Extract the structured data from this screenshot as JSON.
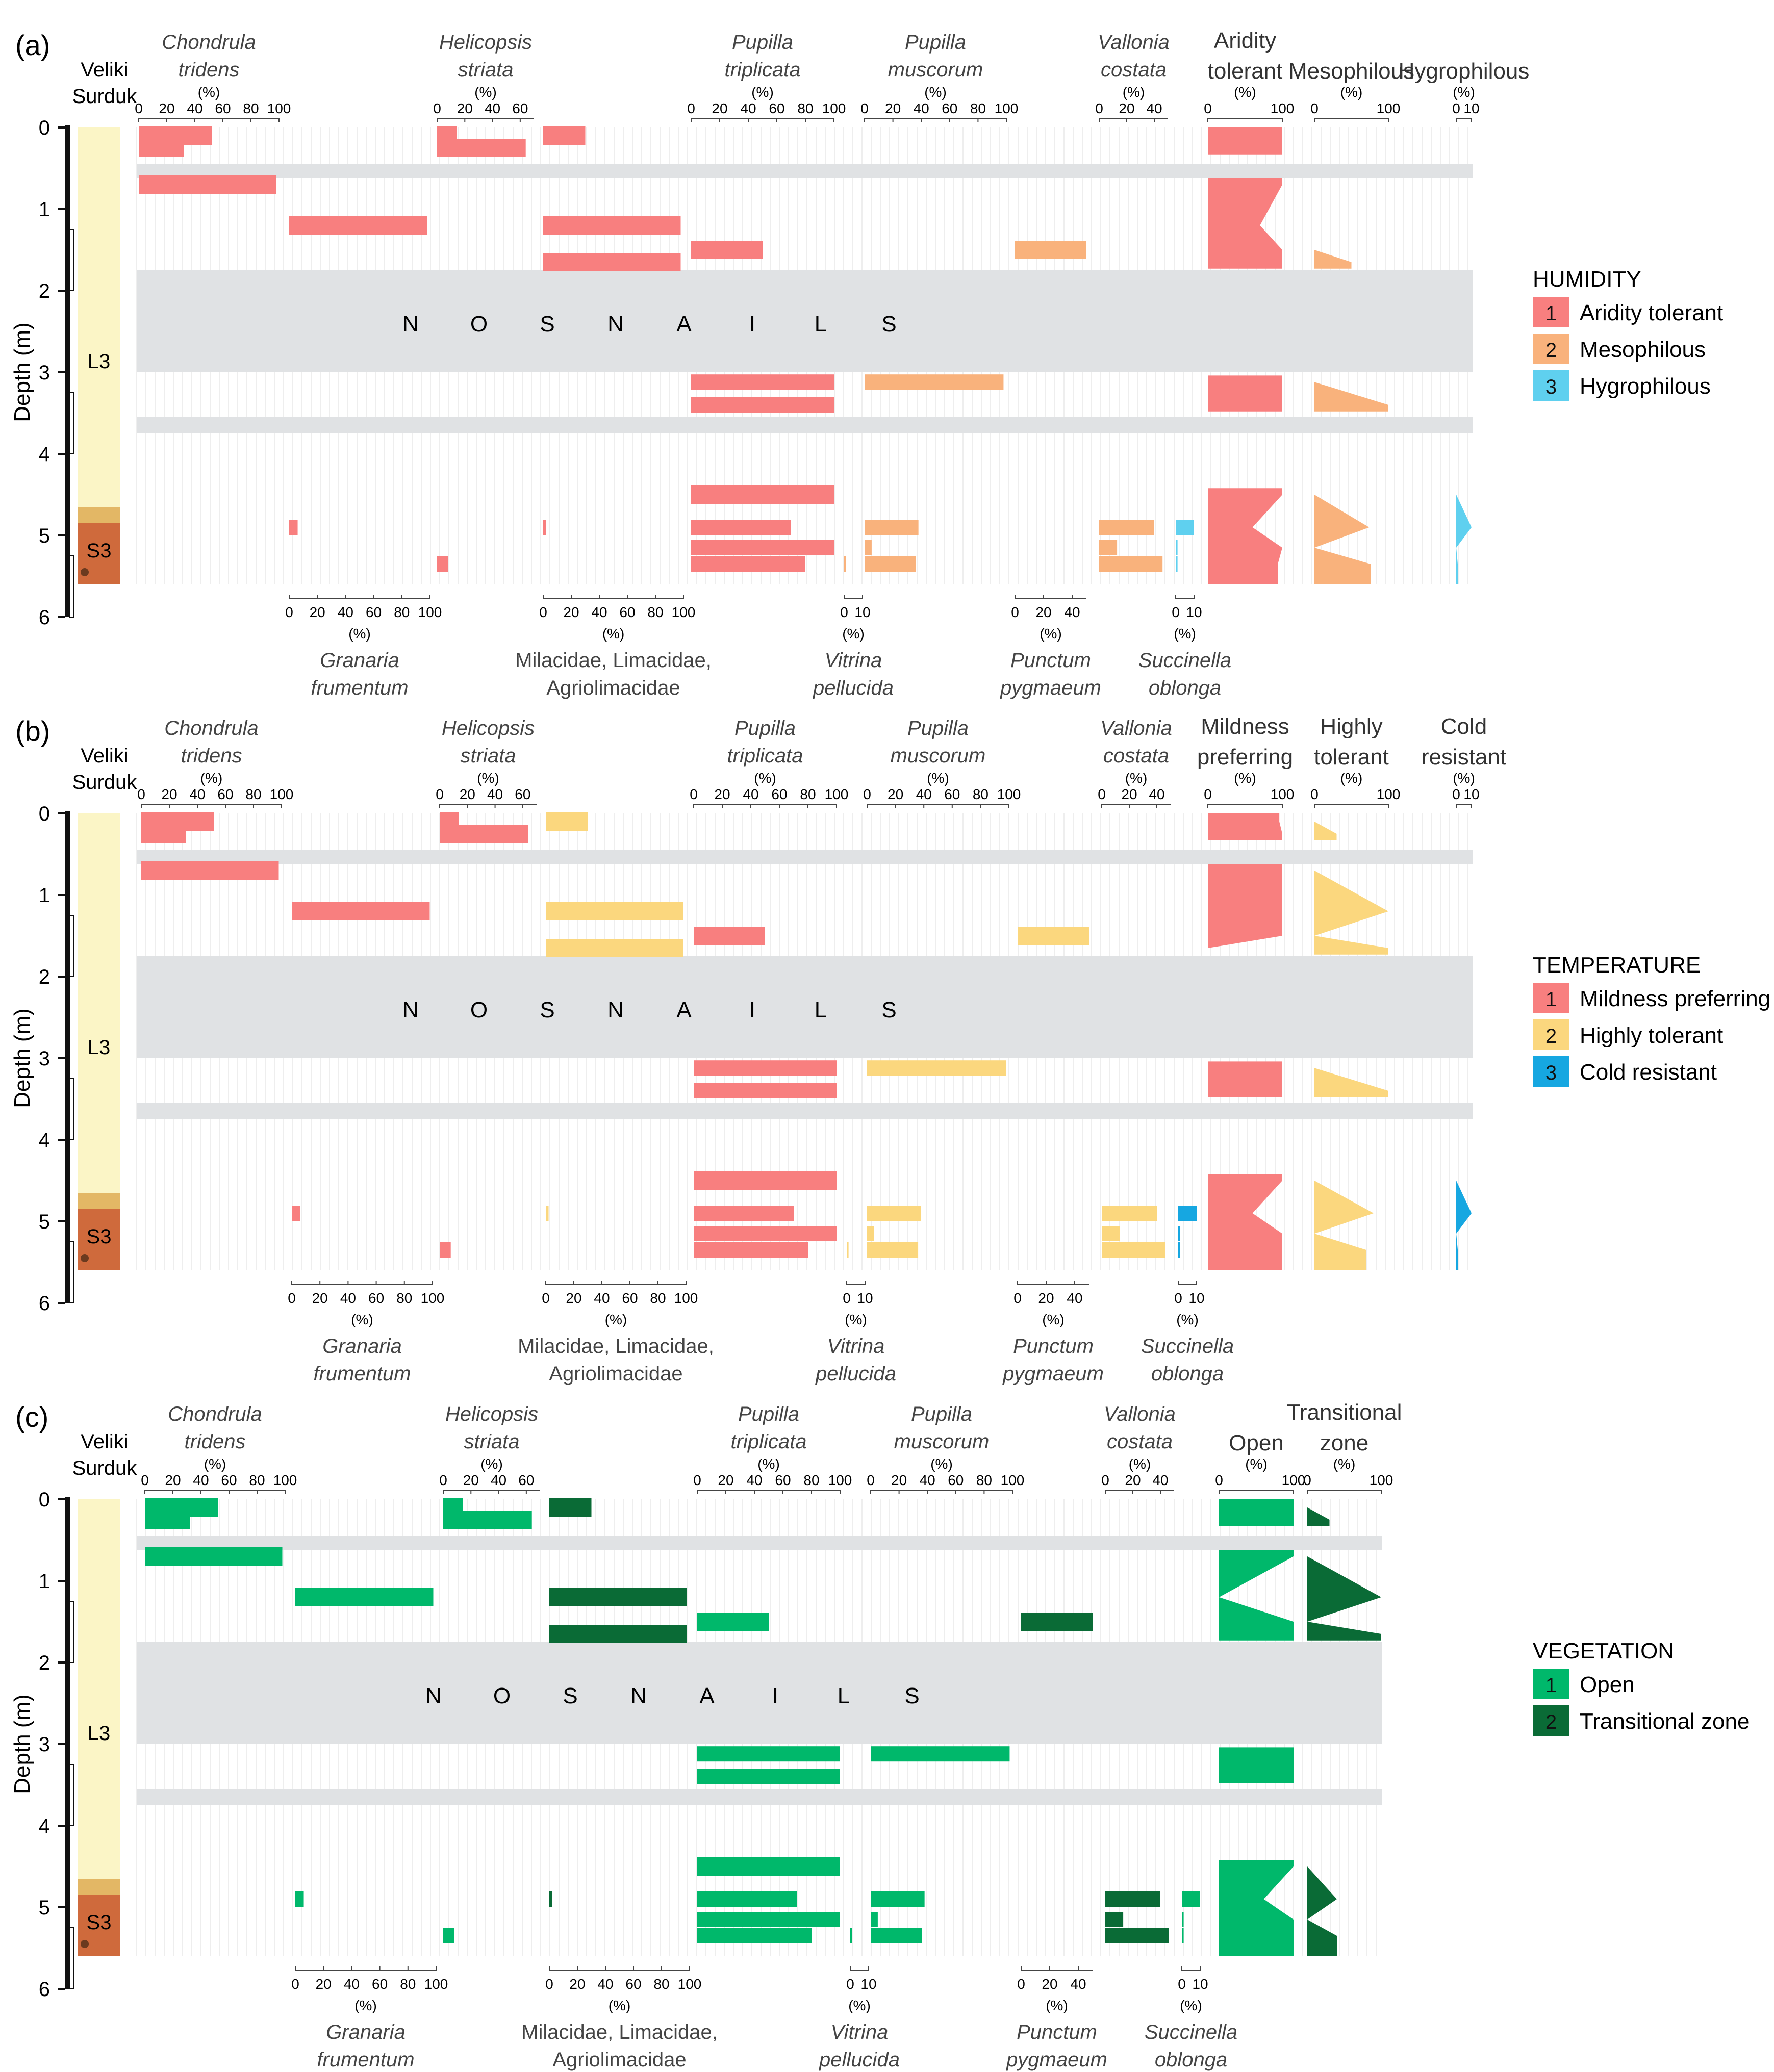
{
  "chart_data": {
    "type": "bar",
    "figure": "Malacological diagram, Veliki Surduk profile",
    "profile_label": "Veliki Surduk",
    "depth_axis": {
      "label": "Depth (m)",
      "ticks": [
        "0",
        "1",
        "2",
        "3",
        "4",
        "5",
        "6"
      ],
      "range_m": [
        0,
        6
      ]
    },
    "units": [
      {
        "name": "L3",
        "top_m": 0,
        "bottom_m": 4.85
      },
      {
        "name": "S3",
        "top_m": 4.85,
        "bottom_m": 5.6
      }
    ],
    "no_snails_label": [
      "N",
      "O",
      "S",
      "N",
      "A",
      "I",
      "L",
      "S"
    ],
    "no_snails_interval_m": [
      1.75,
      3.0
    ],
    "gap_intervals_m": [
      [
        0.45,
        0.62
      ],
      [
        3.55,
        3.75
      ]
    ],
    "sample_depths_m": [
      0.1,
      0.25,
      0.7,
      1.2,
      1.5,
      1.65,
      3.12,
      3.4,
      4.5,
      4.9,
      5.15,
      5.35
    ],
    "taxa": [
      {
        "key": "ctri",
        "name1": "Chondrula",
        "name2": "tridens",
        "pos": "top",
        "ticks": [
          "0",
          "20",
          "40",
          "60",
          "80",
          "100"
        ],
        "max": 100,
        "values": [
          52,
          32,
          98,
          0,
          0,
          0,
          0,
          0,
          0,
          0,
          0,
          0
        ],
        "habit": {
          "a": 1,
          "b": 1,
          "c": 1
        }
      },
      {
        "key": "gfru",
        "name1": "Granaria",
        "name2": "frumentum",
        "pos": "bottom",
        "ticks": [
          "0",
          "20",
          "40",
          "60",
          "80",
          "100"
        ],
        "max": 100,
        "values": [
          0,
          0,
          0,
          98,
          0,
          0,
          0,
          0,
          0,
          6,
          0,
          0
        ],
        "habit": {
          "a": 1,
          "b": 1,
          "c": 1
        }
      },
      {
        "key": "hstr",
        "name1": "Helicopsis",
        "name2": "striata",
        "pos": "top",
        "ticks": [
          "0",
          "20",
          "40",
          "60"
        ],
        "max": 70,
        "values": [
          14,
          64,
          0,
          0,
          0,
          0,
          0,
          0,
          0,
          0,
          0,
          8
        ],
        "habit": {
          "a": 1,
          "b": 1,
          "c": 1
        }
      },
      {
        "key": "mila",
        "name1": "Milacidae, Limacidae,",
        "name2": "Agriolimacidae",
        "pos": "bottom",
        "ticks": [
          "0",
          "20",
          "40",
          "60",
          "80",
          "100"
        ],
        "max": 100,
        "values": [
          30,
          0,
          0,
          98,
          0,
          98,
          0,
          0,
          0,
          2,
          0,
          0
        ],
        "habit": {
          "a": 1,
          "b": 2,
          "c": 2
        }
      },
      {
        "key": "ptri",
        "name1": "Pupilla",
        "name2": "triplicata",
        "pos": "top",
        "ticks": [
          "0",
          "20",
          "40",
          "60",
          "80",
          "100"
        ],
        "max": 100,
        "values": [
          0,
          0,
          0,
          0,
          50,
          0,
          100,
          100,
          100,
          70,
          100,
          80
        ],
        "habit": {
          "a": 1,
          "b": 1,
          "c": 1
        }
      },
      {
        "key": "vpel",
        "name1": "Vitrina",
        "name2": "pellucida",
        "pos": "bottom",
        "ticks": [
          "0",
          "10"
        ],
        "max": 10,
        "values": [
          0,
          0,
          0,
          0,
          0,
          0,
          0,
          0,
          0,
          0,
          0,
          1
        ],
        "habit": {
          "a": 2,
          "b": 2,
          "c": 1
        }
      },
      {
        "key": "pmus",
        "name1": "Pupilla",
        "name2": "muscorum",
        "pos": "top",
        "ticks": [
          "0",
          "20",
          "40",
          "60",
          "80",
          "100"
        ],
        "max": 100,
        "values": [
          0,
          0,
          0,
          0,
          0,
          0,
          98,
          0,
          0,
          38,
          5,
          36
        ],
        "habit": {
          "a": 2,
          "b": 2,
          "c": 1
        }
      },
      {
        "key": "ppyg",
        "name1": "Punctum",
        "name2": "pygmaeum",
        "pos": "bottom",
        "ticks": [
          "0",
          "20",
          "40"
        ],
        "max": 50,
        "values": [
          0,
          0,
          0,
          0,
          50,
          0,
          0,
          0,
          0,
          0,
          0,
          0
        ],
        "habit": {
          "a": 2,
          "b": 2,
          "c": 2
        }
      },
      {
        "key": "vcos",
        "name1": "Vallonia",
        "name2": "costata",
        "pos": "top",
        "ticks": [
          "0",
          "20",
          "40"
        ],
        "max": 50,
        "values": [
          0,
          0,
          0,
          0,
          0,
          0,
          0,
          0,
          0,
          40,
          13,
          46
        ],
        "habit": {
          "a": 2,
          "b": 2,
          "c": 2
        }
      },
      {
        "key": "sobl",
        "name1": "Succinella",
        "name2": "oblonga",
        "pos": "bottom",
        "ticks": [
          "0",
          "10"
        ],
        "max": 10,
        "values": [
          0,
          0,
          0,
          0,
          0,
          0,
          0,
          0,
          0,
          10,
          1,
          1
        ],
        "habit": {
          "a": 3,
          "b": 3,
          "c": 1
        }
      }
    ],
    "panels": [
      {
        "key": "a",
        "label": "(a)",
        "legend_title": "HUMIDITY",
        "colors": {
          "1": "#f87f7f",
          "2": "#f9b27c",
          "3": "#5fd0ef"
        },
        "categories": [
          {
            "num": "1",
            "name": "Aridity tolerant"
          },
          {
            "num": "2",
            "name": "Mesophilous"
          },
          {
            "num": "3",
            "name": "Hygrophilous"
          }
        ],
        "groups": [
          {
            "h1": "Aridity",
            "h2": "tolerant",
            "ticks": [
              "0",
              "100"
            ],
            "max": 100,
            "cat": "1",
            "values": [
              100,
              100,
              100,
              70,
              100,
              100,
              100,
              100,
              100,
              60,
              100,
              94
            ]
          },
          {
            "h1": "Mesophilous",
            "h2": "",
            "ticks": [
              "0",
              "100"
            ],
            "max": 100,
            "cat": "2",
            "values": [
              0,
              0,
              0,
              0,
              0,
              50,
              0,
              100,
              0,
              74,
              0,
              76
            ]
          },
          {
            "h1": "Hygrophilous",
            "h2": "",
            "ticks": [
              "0",
              "10"
            ],
            "max": 10,
            "cat": "3",
            "values": [
              0,
              0,
              0,
              0,
              0,
              0,
              0,
              0,
              0,
              10,
              0,
              1
            ]
          }
        ]
      },
      {
        "key": "b",
        "label": "(b)",
        "legend_title": "TEMPERATURE",
        "colors": {
          "1": "#f87f7f",
          "2": "#fbd77e",
          "3": "#16a7e1"
        },
        "categories": [
          {
            "num": "1",
            "name": "Mildness preferring"
          },
          {
            "num": "2",
            "name": "Highly tolerant"
          },
          {
            "num": "3",
            "name": "Cold resistant"
          }
        ],
        "groups": [
          {
            "h1": "Mildness",
            "h2": "preferring",
            "ticks": [
              "0",
              "100"
            ],
            "max": 100,
            "cat": "1",
            "values": [
              96,
              100,
              100,
              100,
              100,
              0,
              100,
              100,
              100,
              60,
              100,
              100
            ],
            "v0": [
              100,
              100,
              100,
              100,
              100,
              100,
              100,
              100,
              100,
              100,
              100,
              100
            ]
          },
          {
            "h1": "Highly",
            "h2": "tolerant",
            "ticks": [
              "0",
              "100"
            ],
            "max": 100,
            "cat": "2",
            "values": [
              0,
              30,
              0,
              100,
              0,
              100,
              0,
              100,
              0,
              80,
              0,
              70
            ]
          },
          {
            "h1": "Cold",
            "h2": "resistant",
            "ticks": [
              "0",
              "10"
            ],
            "max": 10,
            "cat": "3",
            "values": [
              0,
              0,
              0,
              0,
              0,
              0,
              0,
              0,
              0,
              10,
              0,
              1
            ]
          }
        ]
      },
      {
        "key": "c",
        "label": "(c)",
        "legend_title": "VEGETATION",
        "colors": {
          "1": "#00b86b",
          "2": "#0a6b36"
        },
        "categories": [
          {
            "num": "1",
            "name": "Open"
          },
          {
            "num": "2",
            "name": "Transitional zone"
          }
        ],
        "groups": [
          {
            "h1": "Open",
            "h2": "",
            "ticks": [
              "0",
              "100"
            ],
            "max": 100,
            "cat": "1",
            "values": [
              100,
              100,
              100,
              0,
              100,
              100,
              100,
              100,
              100,
              60,
              100,
              100
            ]
          },
          {
            "h1": "Transitional",
            "h2": "zone",
            "ticks": [
              "0",
              "100"
            ],
            "max": 100,
            "cat": "2",
            "values": [
              0,
              30,
              0,
              100,
              0,
              100,
              0,
              0,
              0,
              40,
              0,
              40
            ]
          }
        ]
      }
    ]
  }
}
